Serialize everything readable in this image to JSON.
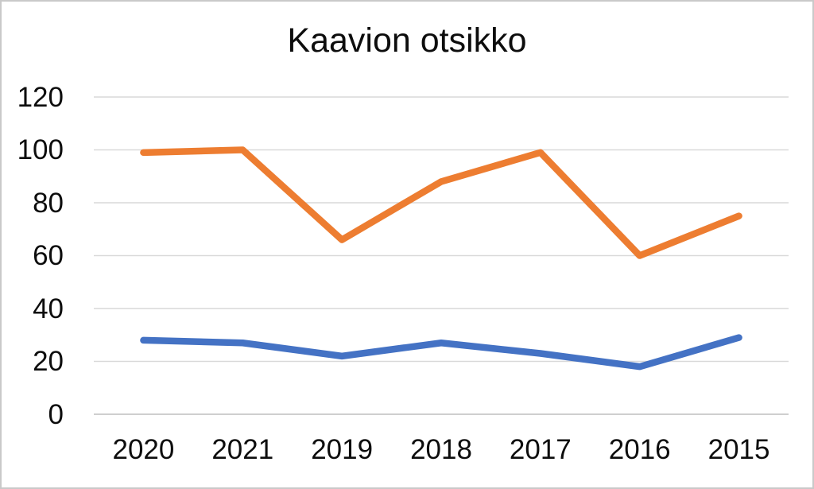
{
  "chart_data": {
    "type": "line",
    "title": "Kaavion otsikko",
    "categories": [
      "2020",
      "2021",
      "2019",
      "2018",
      "2017",
      "2016",
      "2015"
    ],
    "series": [
      {
        "name": "blue-series",
        "color": "#4472C4",
        "values": [
          28,
          27,
          22,
          27,
          23,
          18,
          29
        ]
      },
      {
        "name": "orange-series",
        "color": "#ED7D31",
        "values": [
          99,
          100,
          66,
          88,
          99,
          60,
          75
        ]
      }
    ],
    "xlabel": "",
    "ylabel": "",
    "ylim": [
      0,
      120
    ],
    "yticks": [
      0,
      20,
      40,
      60,
      80,
      100,
      120
    ],
    "grid": true,
    "gridline_color": "#d9d9d9",
    "axis_line_color": "#cfcfcf",
    "text_color": "#0d0d0d",
    "background_color": "#ffffff",
    "legend": "none"
  }
}
